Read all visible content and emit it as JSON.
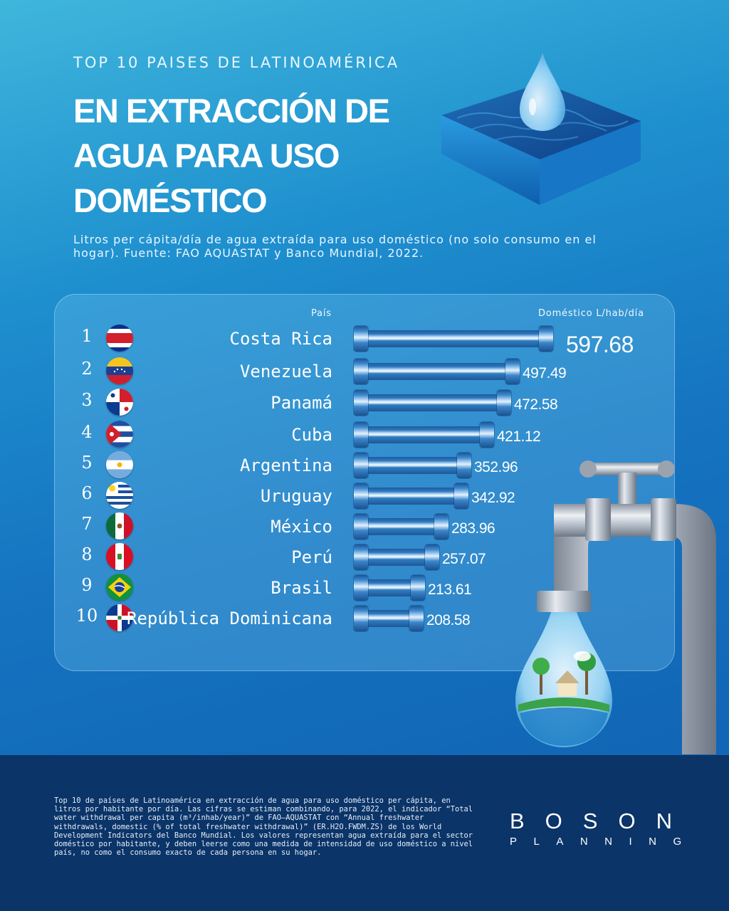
{
  "header": {
    "kicker": "TOP 10 PAISES DE LATINOAMÉRICA",
    "title_lines": [
      "EN EXTRACCIÓN DE",
      "AGUA PARA USO",
      "DOMÉSTICO"
    ],
    "subtitle": "Litros per cápita/día de agua extraída para uso doméstico (no solo consumo en el hogar). Fuente: FAO AQUASTAT y Banco Mundial, 2022."
  },
  "chart_data": {
    "type": "bar",
    "orientation": "horizontal",
    "column_headers": {
      "country": "País",
      "value": "Doméstico L/hab/día"
    },
    "ranks": [
      "1",
      "2",
      "3",
      "4",
      "5",
      "6",
      "7",
      "8",
      "9",
      "10"
    ],
    "categories": [
      "Costa Rica",
      "Venezuela",
      "Panamá",
      "Cuba",
      "Argentina",
      "Uruguay",
      "México",
      "Perú",
      "Brasil",
      "República Dominicana"
    ],
    "values": [
      597.68,
      497.49,
      472.58,
      421.12,
      352.96,
      342.92,
      283.96,
      257.07,
      213.61,
      208.58
    ],
    "value_labels": [
      "597.68",
      "497.49",
      "472.58",
      "421.12",
      "352.96",
      "342.92",
      "283.96",
      "257.07",
      "213.61",
      "208.58"
    ],
    "flags": [
      "costa-rica",
      "venezuela",
      "panama",
      "cuba",
      "argentina",
      "uruguay",
      "mexico",
      "peru",
      "brasil",
      "republica-dominicana"
    ]
  },
  "footer": {
    "note": "Top 10 de países de Latinoamérica en extracción de agua para uso doméstico per cápita, en litros por habitante por día. Las cifras se estiman combinando, para 2022, el indicador “Total water withdrawal per capita (m³/inhab/year)” de FAO–AQUASTAT con “Annual freshwater withdrawals, domestic (% of total freshwater withdrawal)” (ER.H2O.FWDM.ZS) de los World Development Indicators del Banco Mundial. Los valores representan agua extraída para el sector doméstico por habitante, y deben leerse como una medida de intensidad de uso doméstico a nivel país, no como el consumo exacto de cada persona en su hogar.",
    "logo_main": "BOSON",
    "logo_sub": "PLANNING"
  },
  "colors": {
    "background_top": "#3fb6dc",
    "background_bottom": "#0f5fb0",
    "footer": "#0b3468",
    "bar": "#2d78bf"
  }
}
